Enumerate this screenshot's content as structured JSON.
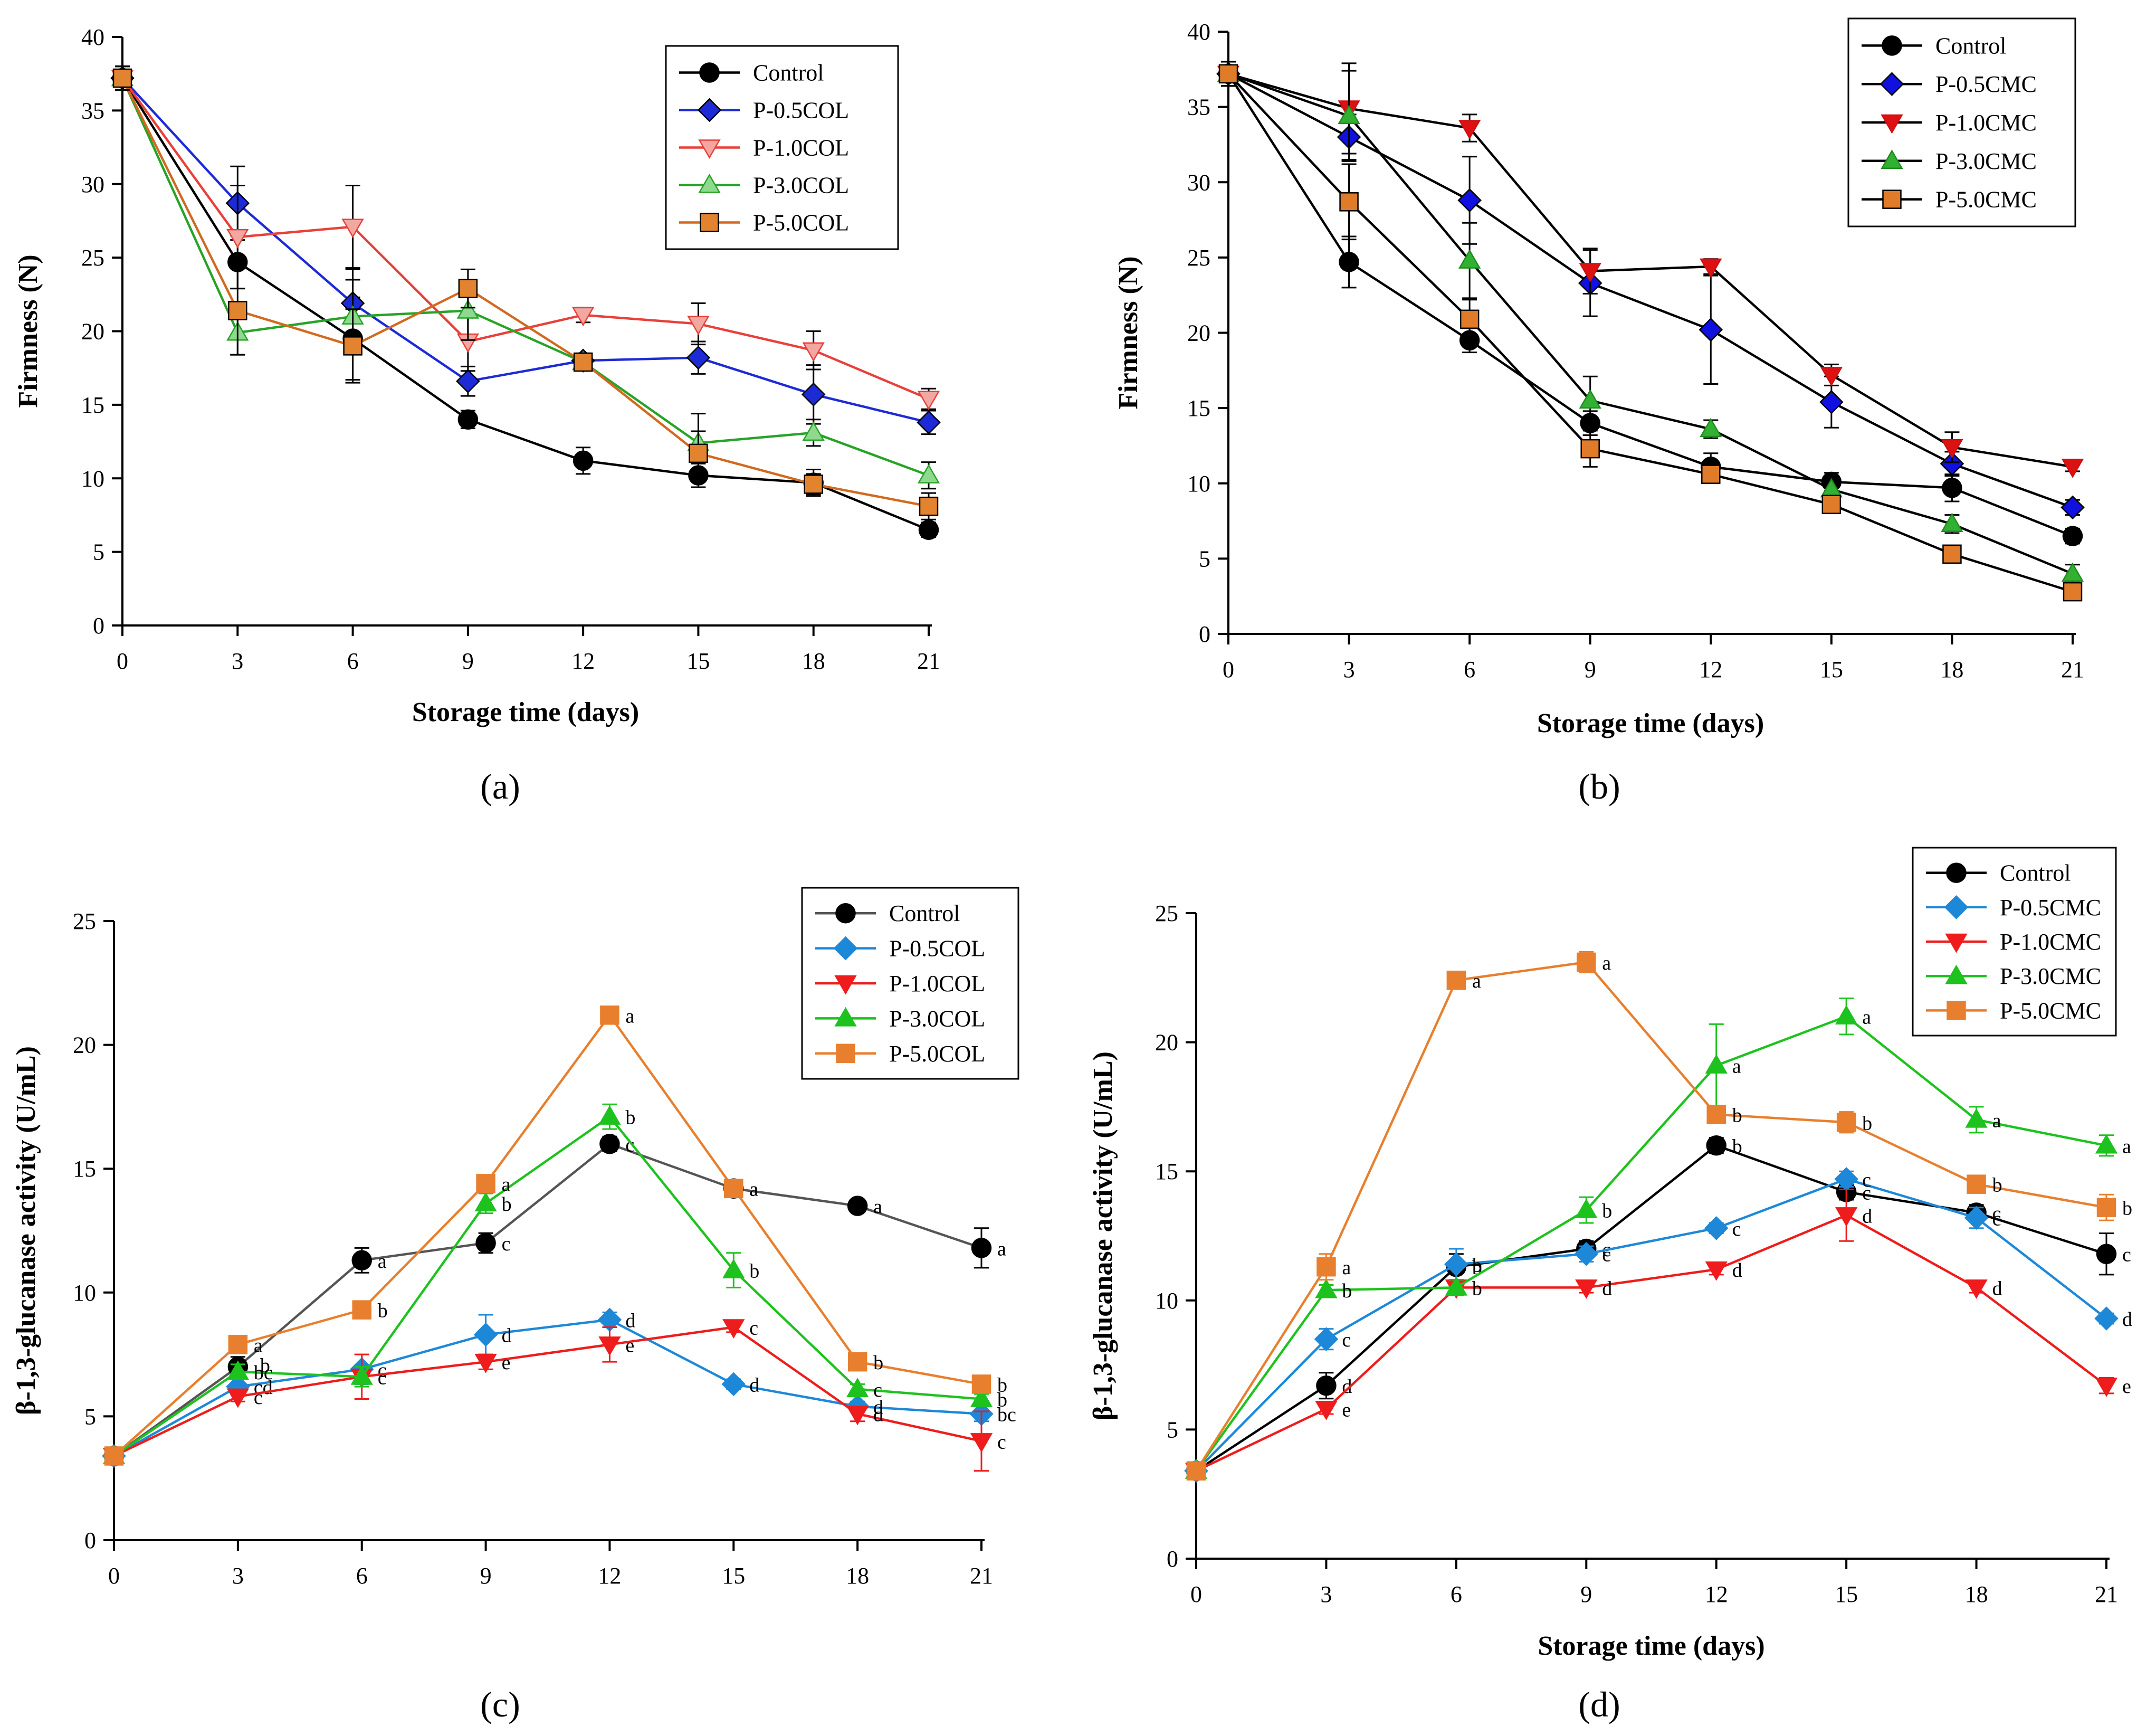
{
  "figure": {
    "labels": [
      "(a)",
      "(b)",
      "(c)",
      "(d)"
    ]
  },
  "chart_data": [
    {
      "type": "line",
      "panel_label": "(a)",
      "title": "",
      "xlabel": "Storage time (days)",
      "ylabel": "Firmness (N)",
      "x": [
        0,
        3,
        6,
        9,
        12,
        15,
        18,
        21
      ],
      "xticks": [
        "0",
        "3",
        "6",
        "9",
        "12",
        "15",
        "18",
        "21"
      ],
      "yticks": [
        "0",
        "5",
        "10",
        "15",
        "20",
        "25",
        "30",
        "35",
        "40"
      ],
      "xlim": [
        0,
        21
      ],
      "ylim": [
        0,
        40
      ],
      "legend_position": "top-right",
      "series": [
        {
          "name": "Control",
          "marker": "circle",
          "color": "#000000",
          "fill": "#000000",
          "line": "#000000",
          "values": [
            37.2,
            24.7,
            19.5,
            14.0,
            11.2,
            10.2,
            9.7,
            6.5
          ],
          "errors": [
            0.8,
            1.8,
            2.8,
            0.6,
            0.9,
            0.8,
            0.9,
            0.5
          ]
        },
        {
          "name": "P-0.5COL",
          "marker": "diamond",
          "color": "#1d2bd6",
          "fill": "#1d2bd6",
          "line": "#1d2bd6",
          "values": [
            37.2,
            28.7,
            21.9,
            16.6,
            18.0,
            18.2,
            15.7,
            13.8
          ],
          "errors": [
            0.8,
            2.5,
            2.3,
            1.0,
            0.5,
            1.1,
            2.0,
            0.8
          ]
        },
        {
          "name": "P-1.0COL",
          "marker": "triangle-down",
          "color": "#e8403a",
          "fill": "#f2a7a0",
          "line": "#e8403a",
          "values": [
            37.2,
            26.4,
            27.1,
            19.3,
            21.1,
            20.5,
            18.7,
            15.4
          ],
          "errors": [
            0.8,
            3.5,
            2.8,
            2.0,
            0.5,
            1.4,
            1.3,
            0.7
          ]
        },
        {
          "name": "P-3.0COL",
          "marker": "triangle-up",
          "color": "#27a327",
          "fill": "#8fd98f",
          "line": "#27a327",
          "values": [
            37.2,
            19.9,
            21.0,
            21.4,
            17.9,
            12.4,
            13.1,
            10.2
          ],
          "errors": [
            0.8,
            1.5,
            2.5,
            2.0,
            0.5,
            2.0,
            0.9,
            0.9
          ]
        },
        {
          "name": "P-5.0COL",
          "marker": "square",
          "color": "#d2691e",
          "fill": "#e2832f",
          "line": "#d2691e",
          "values": [
            37.2,
            21.4,
            19.0,
            22.9,
            17.9,
            11.7,
            9.6,
            8.1
          ],
          "errors": [
            0.8,
            3.0,
            2.5,
            1.3,
            0.5,
            1.5,
            0.7,
            0.9
          ]
        }
      ],
      "annotations": []
    },
    {
      "type": "line",
      "panel_label": "(b)",
      "title": "",
      "xlabel": "Storage time (days)",
      "ylabel": "Firmness (N)",
      "x": [
        0,
        3,
        6,
        9,
        12,
        15,
        18,
        21
      ],
      "xticks": [
        "0",
        "3",
        "6",
        "9",
        "12",
        "15",
        "18",
        "21"
      ],
      "yticks": [
        "0",
        "5",
        "10",
        "15",
        "20",
        "25",
        "30",
        "35",
        "40"
      ],
      "xlim": [
        0,
        21
      ],
      "ylim": [
        0,
        40
      ],
      "legend_position": "top-right",
      "series": [
        {
          "name": "Control",
          "marker": "circle",
          "color": "#000000",
          "fill": "#000000",
          "line": "#000000",
          "values": [
            37.2,
            24.7,
            19.5,
            14.0,
            11.1,
            10.1,
            9.7,
            6.5
          ],
          "errors": [
            0.8,
            1.7,
            0.8,
            0.8,
            0.9,
            0.6,
            0.9,
            0.5
          ]
        },
        {
          "name": "P-0.5CMC",
          "marker": "diamond",
          "color": "#1010e0",
          "fill": "#1010e0",
          "line": "#000000",
          "values": [
            37.2,
            33.0,
            28.8,
            23.3,
            20.2,
            15.4,
            11.3,
            8.4
          ],
          "errors": [
            0.8,
            1.5,
            2.9,
            2.2,
            3.6,
            1.7,
            0.8,
            0.5
          ]
        },
        {
          "name": "P-1.0CMC",
          "marker": "triangle-down",
          "color": "#cc1111",
          "fill": "#dd1111",
          "line": "#000000",
          "values": [
            37.2,
            34.9,
            33.6,
            24.1,
            24.4,
            17.2,
            12.4,
            11.1
          ],
          "errors": [
            0.8,
            3.0,
            0.9,
            1.5,
            0.5,
            0.7,
            1.0,
            0.3
          ]
        },
        {
          "name": "P-3.0CMC",
          "marker": "triangle-up",
          "color": "#1e8c1e",
          "fill": "#32b032",
          "line": "#000000",
          "values": [
            37.2,
            34.4,
            24.8,
            15.5,
            13.6,
            9.6,
            7.3,
            4.0
          ],
          "errors": [
            0.8,
            3.0,
            2.5,
            1.6,
            0.6,
            0.7,
            0.6,
            0.6
          ]
        },
        {
          "name": "P-5.0CMC",
          "marker": "square",
          "color": "#c25f1b",
          "fill": "#e07b2a",
          "line": "#000000",
          "values": [
            37.2,
            28.7,
            20.9,
            12.3,
            10.6,
            8.6,
            5.3,
            2.8
          ],
          "errors": [
            0.8,
            2.5,
            1.3,
            1.2,
            0.5,
            0.4,
            0.3,
            0.3
          ]
        }
      ],
      "annotations": []
    },
    {
      "type": "line",
      "panel_label": "(c)",
      "title": "",
      "xlabel": "",
      "ylabel": "β-1,3-glucanase activity (U/mL)",
      "x": [
        0,
        3,
        6,
        9,
        12,
        15,
        18,
        21
      ],
      "xticks": [
        "0",
        "3",
        "6",
        "9",
        "12",
        "15",
        "18",
        "21"
      ],
      "yticks": [
        "0",
        "5",
        "10",
        "15",
        "20",
        "25"
      ],
      "xlim": [
        0,
        21
      ],
      "ylim": [
        0,
        25
      ],
      "legend_position": "top-right",
      "series": [
        {
          "name": "Control",
          "marker": "circle",
          "color": "#000000",
          "fill": "#000000",
          "line": "#555555",
          "values": [
            3.4,
            7.0,
            11.3,
            12.0,
            16.0,
            14.2,
            13.5,
            11.8
          ],
          "errors": [
            0.1,
            0.4,
            0.5,
            0.4,
            0.3,
            0.3,
            0.2,
            0.8
          ],
          "letters": [
            "",
            "",
            "a",
            "c",
            "c",
            "a",
            "a",
            "a"
          ]
        },
        {
          "name": "P-0.5COL",
          "marker": "diamond",
          "color": "#1e88d8",
          "fill": "#1e88d8",
          "line": "#1e88d8",
          "values": [
            3.4,
            6.2,
            6.9,
            8.3,
            8.9,
            6.3,
            5.4,
            5.1
          ],
          "errors": [
            0.1,
            0.3,
            0.6,
            0.8,
            0.3,
            0.2,
            0.2,
            0.3
          ],
          "letters": [
            "",
            "cd",
            "c",
            "d",
            "d",
            "d",
            "d",
            "bc"
          ]
        },
        {
          "name": "P-1.0COL",
          "marker": "triangle-down",
          "color": "#ee1c1c",
          "fill": "#ee1c1c",
          "line": "#ee1c1c",
          "values": [
            3.4,
            5.8,
            6.6,
            7.2,
            7.9,
            8.6,
            5.1,
            4.0
          ],
          "errors": [
            0.1,
            0.2,
            0.9,
            0.3,
            0.7,
            0.2,
            0.3,
            1.2
          ],
          "letters": [
            "",
            "c",
            "c",
            "e",
            "e",
            "c",
            "d",
            "c"
          ]
        },
        {
          "name": "P-3.0COL",
          "marker": "triangle-up",
          "color": "#1ec21e",
          "fill": "#1ec21e",
          "line": "#1ec21e",
          "values": [
            3.4,
            6.8,
            6.6,
            13.6,
            17.1,
            10.9,
            6.1,
            5.7
          ],
          "errors": [
            0.1,
            0.3,
            0.4,
            0.4,
            0.5,
            0.7,
            0.2,
            0.2
          ],
          "letters": [
            "",
            "bc",
            "",
            "b",
            "b",
            "b",
            "c",
            "b"
          ]
        },
        {
          "name": "P-5.0COL",
          "marker": "square",
          "color": "#e87f2e",
          "fill": "#e87f2e",
          "line": "#e87f2e",
          "values": [
            3.4,
            7.9,
            9.3,
            14.4,
            21.2,
            14.2,
            7.2,
            6.3
          ],
          "errors": [
            0.1,
            0.2,
            0.2,
            0.2,
            0.3,
            0.2,
            0.2,
            0.2
          ],
          "letters": [
            "",
            "a",
            "b",
            "a",
            "a",
            "a",
            "b",
            "b"
          ]
        }
      ],
      "annotations": [
        {
          "text": "b",
          "x": 3,
          "y": 7.0,
          "dx": 42,
          "dy": 10
        }
      ]
    },
    {
      "type": "line",
      "panel_label": "(d)",
      "title": "",
      "xlabel": "Storage time (days)",
      "ylabel": "β-1,3-glucanase activity (U/mL)",
      "x": [
        0,
        3,
        6,
        9,
        12,
        15,
        18,
        21
      ],
      "xticks": [
        "0",
        "3",
        "6",
        "9",
        "12",
        "15",
        "18",
        "21"
      ],
      "yticks": [
        "0",
        "5",
        "10",
        "15",
        "20",
        "25"
      ],
      "xlim": [
        0,
        21
      ],
      "ylim": [
        0,
        25
      ],
      "legend_position": "top-right",
      "series": [
        {
          "name": "Control",
          "marker": "circle",
          "color": "#000000",
          "fill": "#000000",
          "line": "#000000",
          "values": [
            3.4,
            6.7,
            11.3,
            12.0,
            16.0,
            14.2,
            13.4,
            11.8
          ],
          "errors": [
            0.1,
            0.5,
            0.5,
            0.3,
            0.3,
            0.3,
            0.3,
            0.8
          ],
          "letters": [
            "",
            "d",
            "b",
            "c",
            "b",
            "c",
            "c",
            "c"
          ]
        },
        {
          "name": "P-0.5CMC",
          "marker": "diamond",
          "color": "#1e88d8",
          "fill": "#1e88d8",
          "line": "#1e88d8",
          "values": [
            3.4,
            8.5,
            11.4,
            11.8,
            12.8,
            14.7,
            13.2,
            9.3
          ],
          "errors": [
            0.1,
            0.4,
            0.6,
            0.3,
            0.2,
            0.3,
            0.4,
            0.2
          ],
          "letters": [
            "",
            "c",
            "b",
            "c",
            "c",
            "c",
            "c",
            "d"
          ]
        },
        {
          "name": "P-1.0CMC",
          "marker": "triangle-down",
          "color": "#ee1c1c",
          "fill": "#ee1c1c",
          "line": "#ee1c1c",
          "values": [
            3.4,
            5.8,
            10.5,
            10.5,
            11.2,
            13.3,
            10.5,
            6.7
          ],
          "errors": [
            0.1,
            0.2,
            0.3,
            0.2,
            0.2,
            1.0,
            0.2,
            0.3
          ],
          "letters": [
            "",
            "e",
            "b",
            "d",
            "d",
            "d",
            "d",
            "e"
          ]
        },
        {
          "name": "P-3.0CMC",
          "marker": "triangle-up",
          "color": "#1ec21e",
          "fill": "#1ec21e",
          "line": "#1ec21e",
          "values": [
            3.4,
            10.4,
            10.5,
            13.5,
            19.1,
            21.0,
            17.0,
            16.0
          ],
          "errors": [
            0.1,
            0.2,
            0.3,
            0.5,
            1.6,
            0.7,
            0.5,
            0.4
          ],
          "letters": [
            "",
            "b",
            "",
            "b",
            "a",
            "a",
            "a",
            "a"
          ]
        },
        {
          "name": "P-5.0CMC",
          "marker": "square",
          "color": "#e87f2e",
          "fill": "#e87f2e",
          "line": "#e87f2e",
          "values": [
            3.4,
            11.3,
            22.4,
            23.1,
            17.2,
            16.9,
            14.5,
            13.6
          ],
          "errors": [
            0.1,
            0.5,
            0.2,
            0.4,
            0.3,
            0.4,
            0.2,
            0.5
          ],
          "letters": [
            "",
            "a",
            "a",
            "a",
            "b",
            "b",
            "b",
            "b"
          ]
        }
      ],
      "annotations": []
    }
  ]
}
